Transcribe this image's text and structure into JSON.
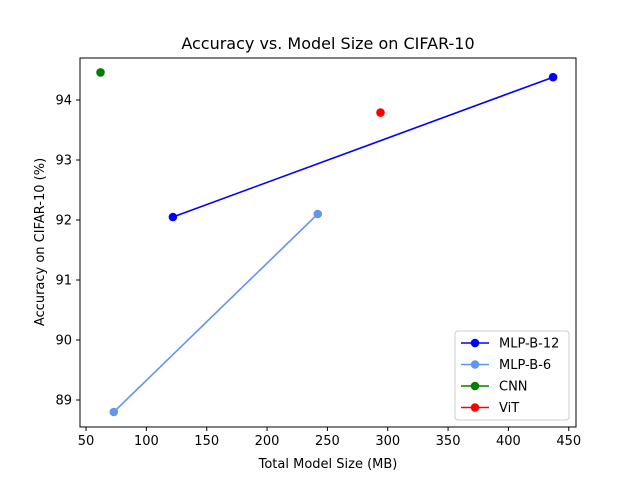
{
  "chart_data": {
    "type": "line",
    "title": "Accuracy vs. Model Size on CIFAR-10",
    "xlabel": "Total Model Size (MB)",
    "ylabel": "Accuracy on CIFAR-10 (%)",
    "xlim": [
      45,
      456
    ],
    "ylim": [
      88.55,
      94.7
    ],
    "xticks": [
      50,
      100,
      150,
      200,
      250,
      300,
      350,
      400,
      450
    ],
    "yticks": [
      89,
      90,
      91,
      92,
      93,
      94
    ],
    "grid": false,
    "legend_position": "bottom-right",
    "series": [
      {
        "name": "MLP-B-12",
        "color": "#0000ff",
        "x": [
          122,
          437
        ],
        "y": [
          92.05,
          94.38
        ]
      },
      {
        "name": "MLP-B-6",
        "color": "#6495ed",
        "x": [
          73,
          242
        ],
        "y": [
          88.8,
          92.1
        ]
      },
      {
        "name": "CNN",
        "color": "#008000",
        "x": [
          62
        ],
        "y": [
          94.46
        ]
      },
      {
        "name": "ViT",
        "color": "#ff0000",
        "x": [
          294
        ],
        "y": [
          93.79
        ]
      }
    ]
  }
}
